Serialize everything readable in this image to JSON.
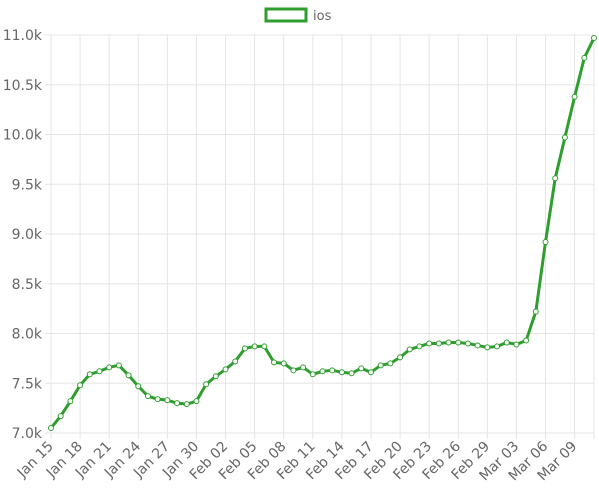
{
  "chart_data": {
    "type": "line",
    "categories": [
      "Jan 15",
      null,
      null,
      "Jan 18",
      null,
      null,
      "Jan 21",
      null,
      null,
      "Jan 24",
      null,
      null,
      "Jan 27",
      null,
      null,
      "Jan 30",
      null,
      null,
      "Feb 02",
      null,
      null,
      "Feb 05",
      null,
      null,
      "Feb 08",
      null,
      null,
      "Feb 11",
      null,
      null,
      "Feb 14",
      null,
      null,
      "Feb 17",
      null,
      null,
      "Feb 20",
      null,
      null,
      "Feb 23",
      null,
      null,
      "Feb 26",
      null,
      null,
      "Feb 29",
      null,
      null,
      "Mar 03",
      null,
      null,
      "Mar 06",
      null,
      null,
      "Mar 09",
      null,
      null
    ],
    "series": [
      {
        "name": "ios",
        "color": "#2e9e2e",
        "values": [
          7050,
          7170,
          7320,
          7480,
          7590,
          7620,
          7660,
          7680,
          7580,
          7470,
          7370,
          7340,
          7330,
          7300,
          7290,
          7320,
          7490,
          7570,
          7640,
          7720,
          7850,
          7870,
          7870,
          7710,
          7700,
          7630,
          7660,
          7590,
          7620,
          7630,
          7610,
          7600,
          7650,
          7610,
          7680,
          7700,
          7760,
          7840,
          7870,
          7900,
          7900,
          7910,
          7910,
          7900,
          7880,
          7860,
          7870,
          7910,
          7890,
          7930,
          8220,
          8920,
          9560,
          9970,
          10380,
          10770,
          10970
        ]
      }
    ],
    "ylim": [
      7000,
      11000
    ],
    "yticks": [
      {
        "value": 7000,
        "label": "7.0k"
      },
      {
        "value": 7500,
        "label": "7.5k"
      },
      {
        "value": 8000,
        "label": "8.0k"
      },
      {
        "value": 8500,
        "label": "8.5k"
      },
      {
        "value": 9000,
        "label": "9.0k"
      },
      {
        "value": 9500,
        "label": "9.5k"
      },
      {
        "value": 10000,
        "label": "10.0k"
      },
      {
        "value": 10500,
        "label": "10.5k"
      },
      {
        "value": 11000,
        "label": "11.0k"
      }
    ],
    "grid": true
  }
}
